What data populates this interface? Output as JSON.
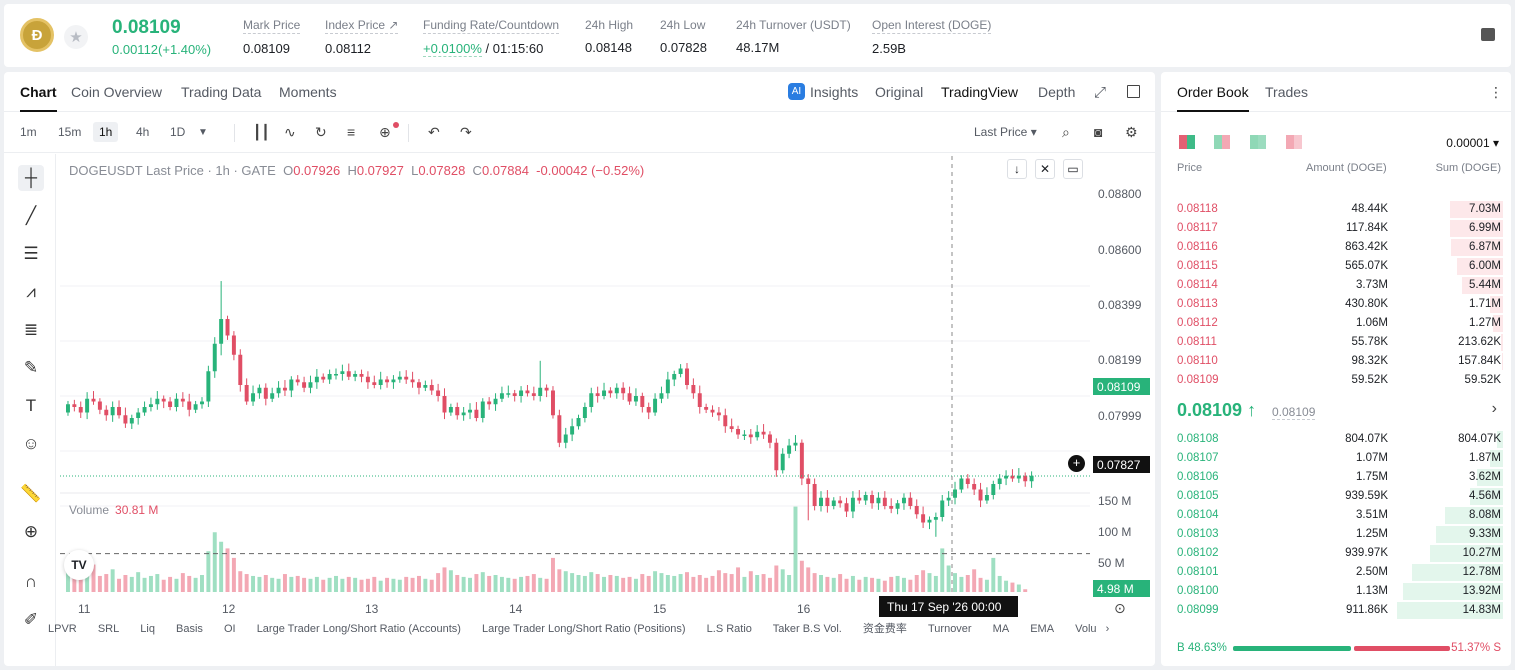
{
  "header": {
    "logo_letter": "Ð",
    "price": "0.08109",
    "change": "0.00112(+1.40%)",
    "stats": [
      {
        "label": "Mark Price",
        "value": "0.08109"
      },
      {
        "label": "Index Price ↗",
        "value": "0.08112"
      },
      {
        "label": "Funding Rate/Countdown",
        "value_green": "+0.0100%",
        "value": " / 01:15:60"
      },
      {
        "label": "24h High",
        "value": "0.08148"
      },
      {
        "label": "24h Low",
        "value": "0.07828"
      },
      {
        "label": "24h Turnover (USDT)",
        "value": "48.17M"
      },
      {
        "label": "Open Interest (DOGE)",
        "value": "2.59B"
      }
    ]
  },
  "chart_tabs": [
    "Chart",
    "Coin Overview",
    "Trading Data",
    "Moments"
  ],
  "view_tabs": {
    "insights": "Insights",
    "original": "Original",
    "tradingview": "TradingView",
    "depth": "Depth"
  },
  "intervals": [
    "1m",
    "15m",
    "1h",
    "4h",
    "1D"
  ],
  "price_type": "Last Price ▾",
  "legend": {
    "symbol": "DOGEUSDT Last Price · 1h · GATE",
    "o_label": "O",
    "o": "0.07926",
    "h_label": "H",
    "h": "0.07927",
    "l_label": "L",
    "l": "0.07828",
    "c_label": "C",
    "c": "0.07884",
    "chg": "-0.00042 (−0.52%)"
  },
  "volume": {
    "label": "Volume",
    "value": "30.81 M"
  },
  "yaxis": {
    "ticks": [
      "0.08800",
      "0.08600",
      "0.08399",
      "0.08199",
      "0.07999"
    ],
    "last_price_tag": "0.08109",
    "cursor_tag": "0.07827",
    "vol_ticks": [
      "150 M",
      "100 M",
      "50 M"
    ],
    "vol_tag": "4.98 M"
  },
  "xaxis": {
    "ticks": [
      "11",
      "12",
      "13",
      "14",
      "15",
      "16"
    ],
    "cursor": "Thu 17 Sep '26   00:00"
  },
  "indicators": [
    "LPVR",
    "SRL",
    "Liq",
    "Basis",
    "OI",
    "Large Trader Long/Short Ratio (Accounts)",
    "Large Trader Long/Short Ratio (Positions)",
    "L.S Ratio",
    "Taker B.S Vol.",
    "资金费率",
    "Turnover",
    "MA",
    "EMA",
    "Volu"
  ],
  "chart_data": {
    "type": "candlestick",
    "interval": "1h",
    "y_range": [
      0.0783,
      0.0885
    ],
    "closes": [
      0.0837,
      0.0836,
      0.0834,
      0.0839,
      0.0838,
      0.0835,
      0.0833,
      0.0836,
      0.0833,
      0.083,
      0.0832,
      0.0834,
      0.0836,
      0.0837,
      0.0839,
      0.0838,
      0.0836,
      0.0839,
      0.0838,
      0.0835,
      0.0837,
      0.0838,
      0.0849,
      0.0859,
      0.0868,
      0.0862,
      0.0855,
      0.0844,
      0.0838,
      0.0841,
      0.0843,
      0.0839,
      0.0841,
      0.0843,
      0.0842,
      0.0846,
      0.0845,
      0.0843,
      0.0845,
      0.0847,
      0.0846,
      0.0848,
      0.0848,
      0.0849,
      0.0847,
      0.0848,
      0.0847,
      0.0845,
      0.0844,
      0.0846,
      0.0845,
      0.0846,
      0.0847,
      0.0846,
      0.0845,
      0.0843,
      0.0844,
      0.0842,
      0.084,
      0.0834,
      0.0836,
      0.0833,
      0.0834,
      0.0835,
      0.0832,
      0.0838,
      0.0837,
      0.0839,
      0.0841,
      0.0841,
      0.084,
      0.0842,
      0.0841,
      0.084,
      0.0843,
      0.0842,
      0.0833,
      0.0823,
      0.0826,
      0.0829,
      0.0832,
      0.0836,
      0.0841,
      0.084,
      0.0842,
      0.0841,
      0.0843,
      0.0841,
      0.0838,
      0.084,
      0.0836,
      0.0834,
      0.0839,
      0.0841,
      0.0846,
      0.0848,
      0.085,
      0.0844,
      0.0841,
      0.0836,
      0.0835,
      0.0834,
      0.0833,
      0.0829,
      0.0828,
      0.0826,
      0.0826,
      0.0825,
      0.0827,
      0.0826,
      0.0823,
      0.0813,
      0.0819,
      0.0822,
      0.0823,
      0.081,
      0.0808,
      0.08,
      0.0803,
      0.08,
      0.0802,
      0.0801,
      0.0798,
      0.0803,
      0.0802,
      0.0804,
      0.0801,
      0.0803,
      0.08,
      0.0799,
      0.0801,
      0.0803,
      0.08,
      0.0797,
      0.0794,
      0.0795,
      0.0796,
      0.0802,
      0.0803,
      0.0806,
      0.081,
      0.0808,
      0.0806,
      0.0802,
      0.0804,
      0.0808,
      0.081,
      0.0811,
      0.081,
      0.0811,
      0.0809,
      0.0811
    ],
    "volumes": [
      38,
      22,
      18,
      25,
      31,
      19,
      21,
      26,
      16,
      20,
      18,
      23,
      17,
      19,
      21,
      15,
      18,
      16,
      22,
      19,
      17,
      20,
      45,
      65,
      55,
      48,
      38,
      24,
      21,
      19,
      18,
      20,
      17,
      16,
      21,
      18,
      19,
      17,
      16,
      18,
      15,
      17,
      19,
      16,
      18,
      17,
      15,
      16,
      18,
      14,
      17,
      16,
      15,
      18,
      17,
      19,
      16,
      15,
      22,
      28,
      25,
      20,
      18,
      17,
      21,
      23,
      19,
      20,
      18,
      17,
      16,
      18,
      19,
      21,
      17,
      16,
      38,
      26,
      24,
      22,
      20,
      19,
      23,
      21,
      18,
      20,
      19,
      17,
      18,
      16,
      21,
      19,
      24,
      22,
      20,
      19,
      21,
      23,
      18,
      20,
      17,
      19,
      25,
      22,
      21,
      28,
      18,
      24,
      20,
      21,
      17,
      30,
      26,
      20,
      92,
      35,
      28,
      22,
      20,
      18,
      17,
      21,
      16,
      19,
      15,
      18,
      17,
      16,
      14,
      18,
      19,
      17,
      15,
      20,
      25,
      22,
      19,
      48,
      30,
      22,
      18,
      20,
      26,
      17,
      15,
      38,
      19,
      14,
      12,
      10,
      5
    ],
    "last": 0.08109,
    "cursor_price": 0.07827
  },
  "orderbook": {
    "tabs": [
      "Order Book",
      "Trades"
    ],
    "precision": "0.00001 ▾",
    "headers": {
      "price": "Price",
      "amount": "Amount (DOGE)",
      "sum": "Sum (DOGE)"
    },
    "asks": [
      {
        "price": "0.08118",
        "amount": "48.44K",
        "sum": "7.03M",
        "depth": 0.5
      },
      {
        "price": "0.08117",
        "amount": "117.84K",
        "sum": "6.99M",
        "depth": 0.5
      },
      {
        "price": "0.08116",
        "amount": "863.42K",
        "sum": "6.87M",
        "depth": 0.49
      },
      {
        "price": "0.08115",
        "amount": "565.07K",
        "sum": "6.00M",
        "depth": 0.43
      },
      {
        "price": "0.08114",
        "amount": "3.73M",
        "sum": "5.44M",
        "depth": 0.39
      },
      {
        "price": "0.08113",
        "amount": "430.80K",
        "sum": "1.71M",
        "depth": 0.12
      },
      {
        "price": "0.08112",
        "amount": "1.06M",
        "sum": "1.27M",
        "depth": 0.09
      },
      {
        "price": "0.08111",
        "amount": "55.78K",
        "sum": "213.62K",
        "depth": 0.015
      },
      {
        "price": "0.08110",
        "amount": "98.32K",
        "sum": "157.84K",
        "depth": 0.011
      },
      {
        "price": "0.08109",
        "amount": "59.52K",
        "sum": "59.52K",
        "depth": 0.004
      }
    ],
    "mid_price": "0.08109 ↑",
    "mid_sub": "0.08109",
    "bids": [
      {
        "price": "0.08108",
        "amount": "804.07K",
        "sum": "804.07K",
        "depth": 0.054
      },
      {
        "price": "0.08107",
        "amount": "1.07M",
        "sum": "1.87M",
        "depth": 0.126
      },
      {
        "price": "0.08106",
        "amount": "1.75M",
        "sum": "3.62M",
        "depth": 0.244
      },
      {
        "price": "0.08105",
        "amount": "939.59K",
        "sum": "4.56M",
        "depth": 0.307
      },
      {
        "price": "0.08104",
        "amount": "3.51M",
        "sum": "8.08M",
        "depth": 0.545
      },
      {
        "price": "0.08103",
        "amount": "1.25M",
        "sum": "9.33M",
        "depth": 0.629
      },
      {
        "price": "0.08102",
        "amount": "939.97K",
        "sum": "10.27M",
        "depth": 0.693
      },
      {
        "price": "0.08101",
        "amount": "2.50M",
        "sum": "12.78M",
        "depth": 0.862
      },
      {
        "price": "0.08100",
        "amount": "1.13M",
        "sum": "13.92M",
        "depth": 0.939
      },
      {
        "price": "0.08099",
        "amount": "911.86K",
        "sum": "14.83M",
        "depth": 1.0
      }
    ],
    "buy_ratio": "B 48.63%",
    "sell_ratio": "51.37% S"
  },
  "colors": {
    "up": "#28b37a",
    "down": "#e04e65"
  }
}
